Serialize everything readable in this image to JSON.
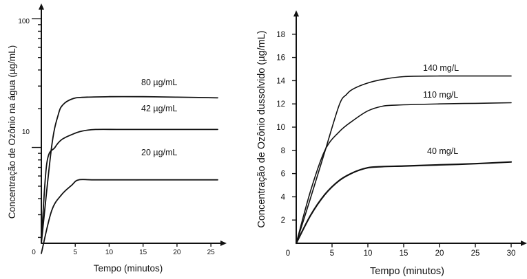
{
  "chart_data": [
    {
      "type": "line",
      "xlabel": "Tempo (minutos)",
      "ylabel": "Concentração de Ozônio na água (µg/mL)",
      "yscale": "log",
      "xlim": [
        0,
        26
      ],
      "ylim": [
        1.8,
        130
      ],
      "x_ticks": [
        0,
        5,
        10,
        15,
        20,
        25
      ],
      "y_tick_labels": [
        "10",
        "100"
      ],
      "grid": false,
      "series": [
        {
          "name": "80 µg/mL",
          "x": [
            0,
            1.5,
            2.5,
            3.2,
            4.5,
            6,
            10,
            15,
            20,
            26
          ],
          "y": [
            1.8,
            10,
            18,
            21.5,
            23.8,
            24.5,
            24.8,
            24.8,
            24.6,
            24.3
          ]
        },
        {
          "name": "42 µg/mL",
          "x": [
            0,
            0.8,
            2,
            3,
            4.5,
            6,
            8,
            12,
            20,
            26
          ],
          "y": [
            1.8,
            7.5,
            10,
            11.5,
            12.6,
            13.4,
            13.8,
            13.8,
            13.8,
            13.8
          ]
        },
        {
          "name": "20 µg/mL",
          "x": [
            0,
            1.5,
            3,
            4.5,
            5.5,
            8,
            15,
            20,
            26
          ],
          "y": [
            1.5,
            3.2,
            4.3,
            5.1,
            5.6,
            5.6,
            5.6,
            5.6,
            5.6
          ]
        }
      ]
    },
    {
      "type": "line",
      "xlabel": "Tempo (minutos)",
      "ylabel": "Concentração de Ozônio dussolvido (µg/mL)",
      "xlim": [
        0,
        30
      ],
      "ylim": [
        0,
        20
      ],
      "x_ticks": [
        0,
        5,
        10,
        15,
        20,
        25,
        30
      ],
      "y_ticks": [
        2,
        4,
        6,
        8,
        10,
        12,
        14,
        16,
        18
      ],
      "grid": false,
      "series": [
        {
          "name": "140 mg/L",
          "x": [
            0,
            2,
            4,
            6,
            7,
            8,
            10,
            12,
            15,
            20,
            25,
            30
          ],
          "y": [
            0,
            3.9,
            7.9,
            11.9,
            12.8,
            13.3,
            13.8,
            14.1,
            14.35,
            14.4,
            14.4,
            14.4
          ]
        },
        {
          "name": "110 mg/L",
          "x": [
            0,
            2,
            4,
            6,
            8,
            10,
            12,
            14,
            20,
            25,
            30
          ],
          "y": [
            0,
            4.5,
            8,
            9.6,
            10.6,
            11.4,
            11.8,
            11.9,
            12,
            12.05,
            12.1
          ]
        },
        {
          "name": "40 mg/L",
          "x": [
            0,
            2,
            4,
            6,
            8,
            10,
            12,
            15,
            20,
            25,
            30
          ],
          "y": [
            0,
            2.4,
            4.2,
            5.4,
            6.1,
            6.5,
            6.6,
            6.65,
            6.75,
            6.85,
            7
          ]
        }
      ]
    }
  ]
}
